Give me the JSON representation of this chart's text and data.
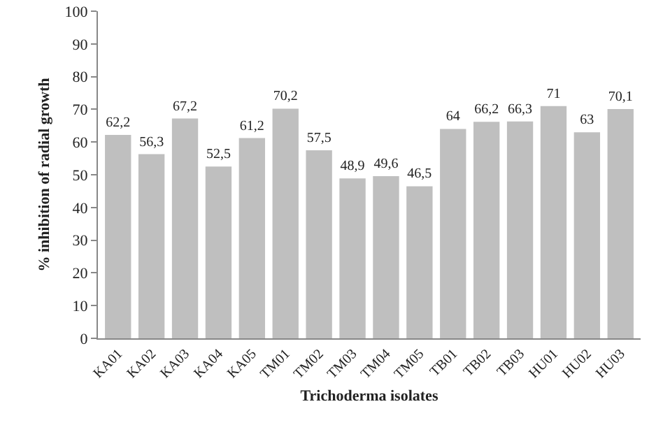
{
  "chart_data": {
    "type": "bar",
    "xlabel": "Trichoderma isolates",
    "ylabel": "% inhibition of radial growth",
    "categories": [
      "KA01",
      "KA02",
      "KA03",
      "KA04",
      "KA05",
      "TM01",
      "TM02",
      "TM03",
      "TM04",
      "TM05",
      "TB01",
      "TB02",
      "TB03",
      "HU01",
      "HU02",
      "HU03"
    ],
    "values": [
      62.2,
      56.3,
      67.2,
      52.5,
      61.2,
      70.2,
      57.5,
      48.9,
      49.6,
      46.5,
      64,
      66.2,
      66.3,
      71,
      63,
      70.1
    ],
    "value_labels": [
      "62,2",
      "56,3",
      "67,2",
      "52,5",
      "61,2",
      "70,2",
      "57,5",
      "48,9",
      "49,6",
      "46,5",
      "64",
      "66,2",
      "66,3",
      "71",
      "63",
      "70,1"
    ],
    "color": "#bfbfbf",
    "ylim": [
      0,
      100
    ],
    "yticks": [
      0,
      10,
      20,
      30,
      40,
      50,
      60,
      70,
      80,
      90,
      100
    ],
    "grid": false
  }
}
